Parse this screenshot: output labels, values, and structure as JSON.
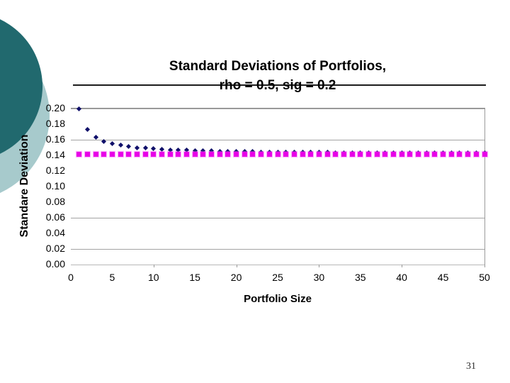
{
  "slide": {
    "page_number": "31",
    "decor": {
      "dark_circle_color": "#21696e",
      "light_circle_color": "#a7cacc"
    }
  },
  "chart": {
    "title_line1": "Standard Deviations of Portfolios,",
    "title_line2": "rho = 0.5, sig = 0.2",
    "y_axis_title": "Standare Deviation",
    "x_axis_title": "Portfolio Size",
    "y_ticks": [
      "0.20",
      "0.18",
      "0.16",
      "0.14",
      "0.12",
      "0.10",
      "0.08",
      "0.06",
      "0.04",
      "0.02",
      "0.00"
    ],
    "x_ticks": [
      "0",
      "5",
      "10",
      "15",
      "20",
      "25",
      "30",
      "35",
      "40",
      "45",
      "50"
    ],
    "gridline_values": [
      0.2,
      0.16,
      0.06,
      0.02
    ],
    "x_tick_marks": [
      10,
      20,
      30,
      40,
      50
    ],
    "colors": {
      "series_diamond": "#10106a",
      "series_square": "#e800e8",
      "gridline": "#a3a3a3",
      "rule": "#1c1c1c"
    }
  },
  "chart_data": {
    "type": "scatter",
    "title": "Standard Deviations of Portfolios, rho = 0.5, sig = 0.2",
    "xlabel": "Portfolio Size",
    "ylabel": "Standare Deviation",
    "xlim": [
      0,
      50
    ],
    "ylim": [
      0.0,
      0.2
    ],
    "x_tick_step": 5,
    "y_tick_step": 0.02,
    "grid": true,
    "legend_position": "none",
    "x": [
      1,
      2,
      3,
      4,
      5,
      6,
      7,
      8,
      9,
      10,
      11,
      12,
      13,
      14,
      15,
      16,
      17,
      18,
      19,
      20,
      21,
      22,
      23,
      24,
      25,
      26,
      27,
      28,
      29,
      30,
      31,
      32,
      33,
      34,
      35,
      36,
      37,
      38,
      39,
      40,
      41,
      42,
      43,
      44,
      45,
      46,
      47,
      48,
      49,
      50
    ],
    "series": [
      {
        "name": "portfolio_standard_deviation",
        "marker": "diamond",
        "color": "#10106a",
        "values": [
          0.2,
          0.1732,
          0.1633,
          0.1581,
          0.1549,
          0.1528,
          0.1512,
          0.15,
          0.1491,
          0.1483,
          0.1477,
          0.1472,
          0.1468,
          0.1464,
          0.1461,
          0.1458,
          0.1455,
          0.1453,
          0.1451,
          0.1449,
          0.1447,
          0.1446,
          0.1445,
          0.1443,
          0.1442,
          0.1441,
          0.144,
          0.1439,
          0.1438,
          0.1438,
          0.1437,
          0.1436,
          0.1435,
          0.1435,
          0.1434,
          0.1434,
          0.1433,
          0.1433,
          0.1432,
          0.1432,
          0.1431,
          0.1431,
          0.1431,
          0.143,
          0.143,
          0.143,
          0.1429,
          0.1429,
          0.1429,
          0.1428
        ]
      },
      {
        "name": "systematic_risk_floor",
        "marker": "square",
        "color": "#e800e8",
        "values": [
          0.1414,
          0.1414,
          0.1414,
          0.1414,
          0.1414,
          0.1414,
          0.1414,
          0.1414,
          0.1414,
          0.1414,
          0.1414,
          0.1414,
          0.1414,
          0.1414,
          0.1414,
          0.1414,
          0.1414,
          0.1414,
          0.1414,
          0.1414,
          0.1414,
          0.1414,
          0.1414,
          0.1414,
          0.1414,
          0.1414,
          0.1414,
          0.1414,
          0.1414,
          0.1414,
          0.1414,
          0.1414,
          0.1414,
          0.1414,
          0.1414,
          0.1414,
          0.1414,
          0.1414,
          0.1414,
          0.1414,
          0.1414,
          0.1414,
          0.1414,
          0.1414,
          0.1414,
          0.1414,
          0.1414,
          0.1414,
          0.1414,
          0.1414
        ]
      }
    ]
  }
}
